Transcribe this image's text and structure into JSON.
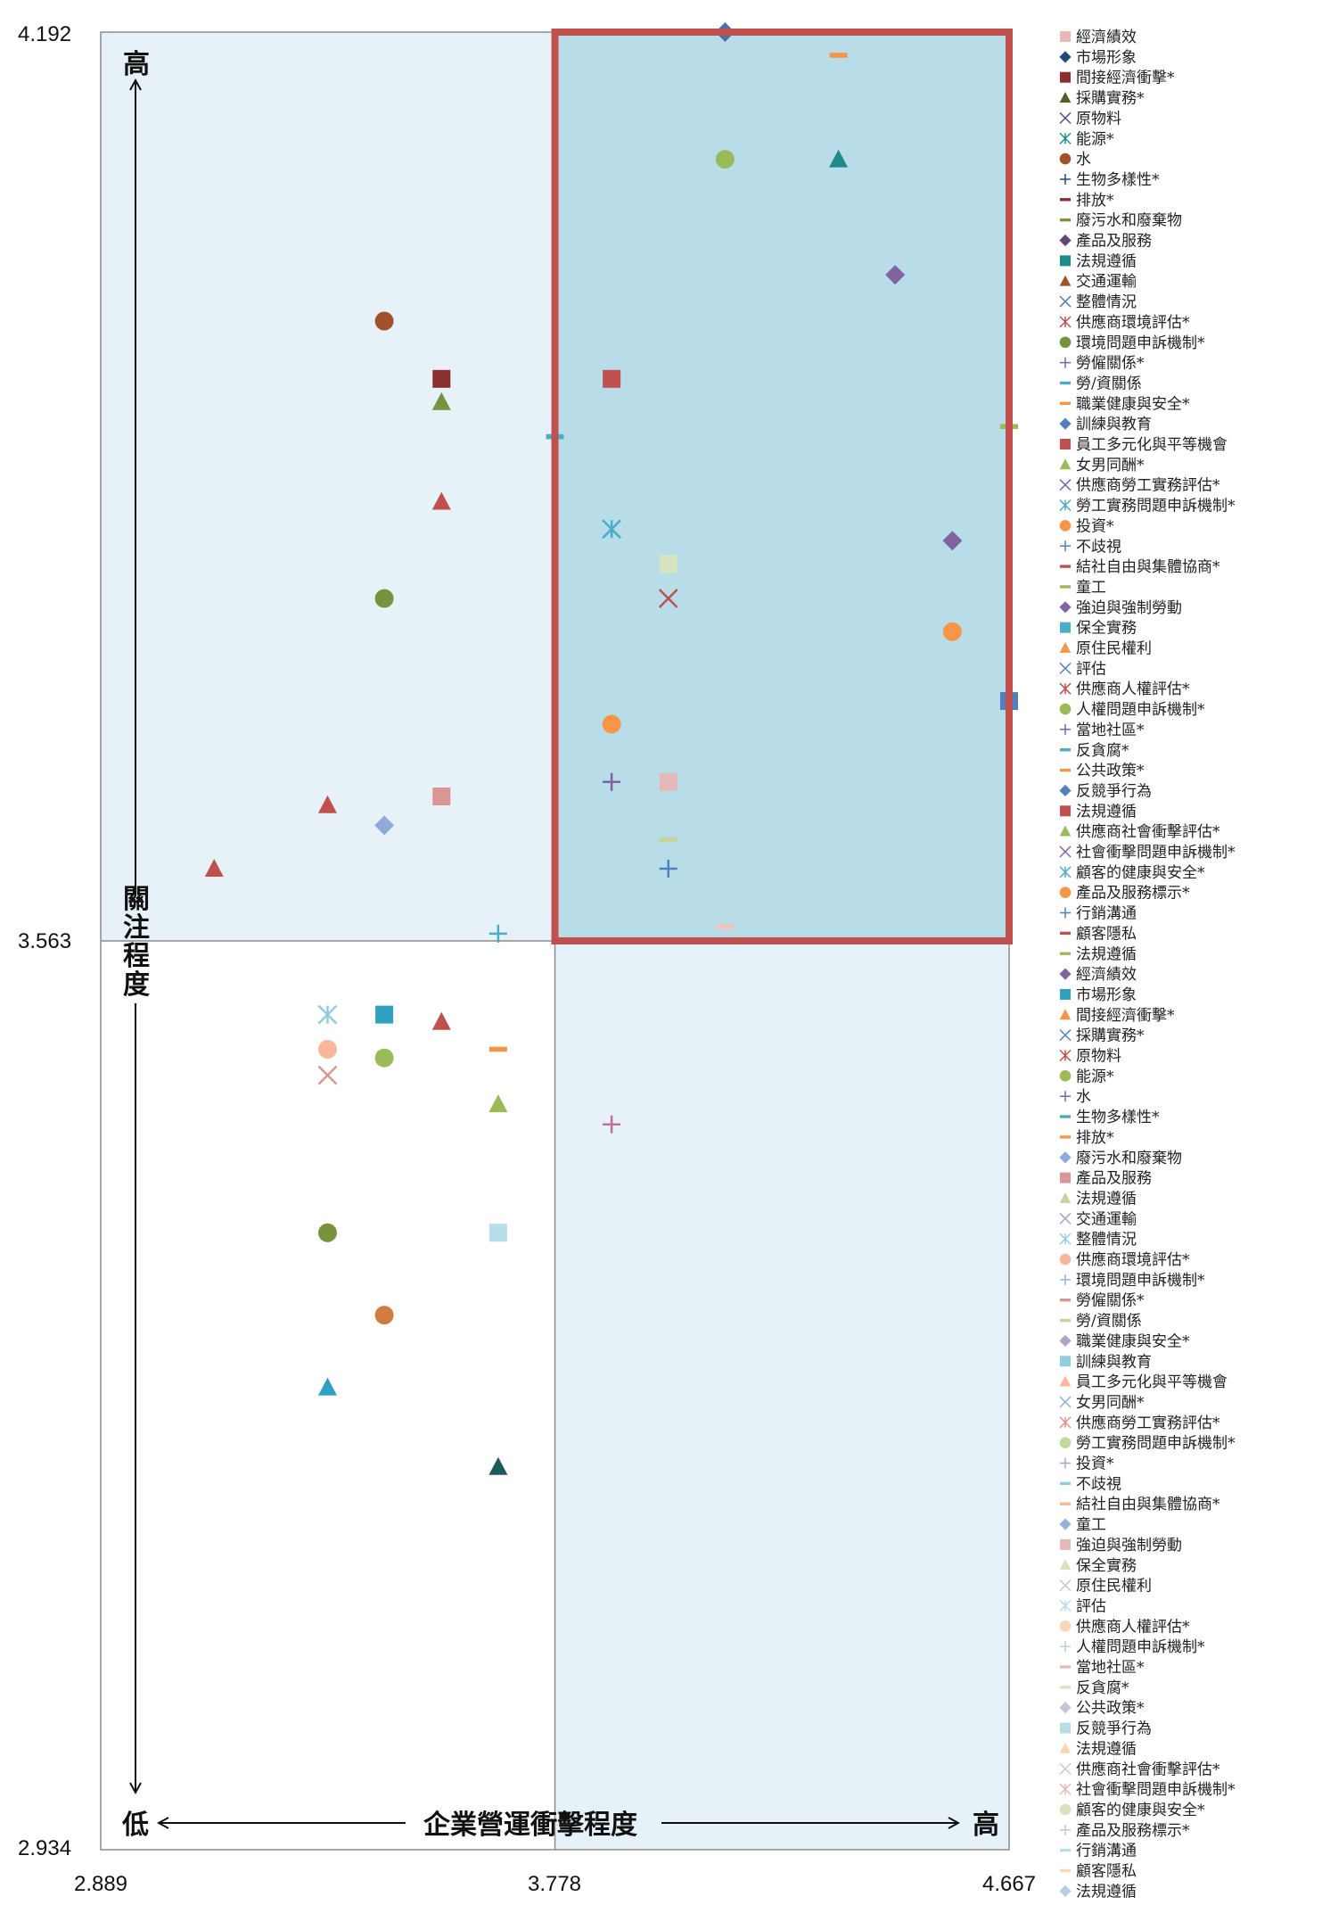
{
  "chart_data": {
    "type": "scatter",
    "title": "",
    "xlabel": "企業營運衝擊程度",
    "ylabel": "關注程度",
    "x_low_label": "低",
    "x_high_label": "高",
    "y_high_label": "高",
    "xlim": [
      2.889,
      4.667
    ],
    "ylim": [
      2.934,
      4.192
    ],
    "x_tick_labels": [
      "2.889",
      "3.778",
      "4.667"
    ],
    "y_tick_labels": [
      "2.934",
      "3.563",
      "4.192"
    ],
    "x_divider": 3.778,
    "y_divider": 3.563,
    "highlight_region": {
      "x": [
        3.778,
        4.667
      ],
      "y": [
        3.563,
        4.192
      ],
      "color": "#c0504d"
    },
    "colors": {
      "quadrant_shade": "#e7f2f8",
      "highlight_fill": "#b8dde9",
      "plot_border": "#8c8c8c"
    },
    "points": [
      {
        "x": 4.111,
        "y": 4.192,
        "marker": "diamond",
        "color": "#4f6fa8"
      },
      {
        "x": 4.333,
        "y": 4.176,
        "marker": "dash",
        "color": "#f79646"
      },
      {
        "x": 4.333,
        "y": 4.104,
        "marker": "triangle",
        "color": "#1f8a8a"
      },
      {
        "x": 4.111,
        "y": 4.104,
        "marker": "circle",
        "color": "#9bbb59"
      },
      {
        "x": 4.444,
        "y": 4.024,
        "marker": "diamond",
        "color": "#8064a2"
      },
      {
        "x": 3.444,
        "y": 3.992,
        "marker": "circle",
        "color": "#a0522d"
      },
      {
        "x": 3.556,
        "y": 3.952,
        "marker": "square",
        "color": "#8b2e2e"
      },
      {
        "x": 3.889,
        "y": 3.952,
        "marker": "square",
        "color": "#c0504d"
      },
      {
        "x": 3.556,
        "y": 3.936,
        "marker": "triangle",
        "color": "#77933c"
      },
      {
        "x": 4.667,
        "y": 3.919,
        "marker": "dash",
        "color": "#9bbb59"
      },
      {
        "x": 3.778,
        "y": 3.912,
        "marker": "dash",
        "color": "#4bacc6"
      },
      {
        "x": 3.556,
        "y": 3.867,
        "marker": "triangle",
        "color": "#c0504d"
      },
      {
        "x": 3.889,
        "y": 3.848,
        "marker": "star",
        "color": "#4bacc6"
      },
      {
        "x": 4.556,
        "y": 3.84,
        "marker": "diamond",
        "color": "#8064a2"
      },
      {
        "x": 4.0,
        "y": 3.824,
        "marker": "square",
        "color": "#d7e4bd"
      },
      {
        "x": 3.444,
        "y": 3.8,
        "marker": "circle",
        "color": "#77933c"
      },
      {
        "x": 4.0,
        "y": 3.8,
        "marker": "x",
        "color": "#c0504d"
      },
      {
        "x": 4.556,
        "y": 3.777,
        "marker": "circle",
        "color": "#f79646"
      },
      {
        "x": 4.667,
        "y": 3.729,
        "marker": "square",
        "color": "#4f81bd"
      },
      {
        "x": 3.889,
        "y": 3.713,
        "marker": "circle",
        "color": "#f79646"
      },
      {
        "x": 3.889,
        "y": 3.673,
        "marker": "plus",
        "color": "#8064a2"
      },
      {
        "x": 4.0,
        "y": 3.673,
        "marker": "square",
        "color": "#e6b9b8"
      },
      {
        "x": 3.556,
        "y": 3.663,
        "marker": "square",
        "color": "#d99694"
      },
      {
        "x": 3.333,
        "y": 3.657,
        "marker": "triangle",
        "color": "#c0504d"
      },
      {
        "x": 3.444,
        "y": 3.643,
        "marker": "diamond",
        "color": "#8eaadb"
      },
      {
        "x": 4.0,
        "y": 3.633,
        "marker": "dash",
        "color": "#c3d69b"
      },
      {
        "x": 3.111,
        "y": 3.613,
        "marker": "triangle",
        "color": "#c0504d"
      },
      {
        "x": 4.0,
        "y": 3.613,
        "marker": "plus",
        "color": "#4f81bd"
      },
      {
        "x": 3.667,
        "y": 3.568,
        "marker": "plus",
        "color": "#4bacc6"
      },
      {
        "x": 4.111,
        "y": 3.573,
        "marker": "dash",
        "color": "#f2c4b9"
      },
      {
        "x": 3.333,
        "y": 3.512,
        "marker": "star",
        "color": "#93cddd"
      },
      {
        "x": 3.444,
        "y": 3.512,
        "marker": "square",
        "color": "#31a0c0"
      },
      {
        "x": 3.556,
        "y": 3.507,
        "marker": "triangle",
        "color": "#c0504d"
      },
      {
        "x": 3.333,
        "y": 3.488,
        "marker": "circle",
        "color": "#fab69a"
      },
      {
        "x": 3.667,
        "y": 3.488,
        "marker": "dash",
        "color": "#f79646"
      },
      {
        "x": 3.444,
        "y": 3.482,
        "marker": "circle",
        "color": "#9bbb59"
      },
      {
        "x": 3.333,
        "y": 3.47,
        "marker": "x",
        "color": "#d99694"
      },
      {
        "x": 3.667,
        "y": 3.45,
        "marker": "triangle",
        "color": "#9bbb59"
      },
      {
        "x": 3.889,
        "y": 3.436,
        "marker": "plus",
        "color": "#c0709f"
      },
      {
        "x": 3.333,
        "y": 3.361,
        "marker": "circle",
        "color": "#77933c"
      },
      {
        "x": 3.667,
        "y": 3.361,
        "marker": "square",
        "color": "#b7dde8"
      },
      {
        "x": 3.444,
        "y": 3.304,
        "marker": "circle",
        "color": "#d07c41"
      },
      {
        "x": 3.333,
        "y": 3.254,
        "marker": "triangle",
        "color": "#31a0c0"
      },
      {
        "x": 3.667,
        "y": 3.199,
        "marker": "triangle",
        "color": "#1f5a5a"
      }
    ],
    "legend": [
      {
        "label": "經濟績效",
        "marker": "square",
        "color": "#e6b9b8"
      },
      {
        "label": "市場形象",
        "marker": "diamond",
        "color": "#1f497d"
      },
      {
        "label": "間接經濟衝擊*",
        "marker": "square",
        "color": "#8b2e2e"
      },
      {
        "label": "採購實務*",
        "marker": "triangle",
        "color": "#4f6228"
      },
      {
        "label": "原物料",
        "marker": "x",
        "color": "#60497a"
      },
      {
        "label": "能源*",
        "marker": "star",
        "color": "#1f8a8a"
      },
      {
        "label": "水",
        "marker": "circle",
        "color": "#a0522d"
      },
      {
        "label": "生物多樣性*",
        "marker": "plus",
        "color": "#1f497d"
      },
      {
        "label": "排放*",
        "marker": "dash",
        "color": "#8b2e2e"
      },
      {
        "label": "廢污水和廢棄物",
        "marker": "dash",
        "color": "#77933c"
      },
      {
        "label": "產品及服務",
        "marker": "diamond",
        "color": "#60497a"
      },
      {
        "label": "法規遵循",
        "marker": "square",
        "color": "#1f8a8a"
      },
      {
        "label": "交通運輸",
        "marker": "triangle",
        "color": "#a0522d"
      },
      {
        "label": "整體情況",
        "marker": "x",
        "color": "#4f81bd"
      },
      {
        "label": "供應商環境評估*",
        "marker": "star",
        "color": "#c0504d"
      },
      {
        "label": "環境問題申訴機制*",
        "marker": "circle",
        "color": "#77933c"
      },
      {
        "label": "勞僱關係*",
        "marker": "plus",
        "color": "#8064a2"
      },
      {
        "label": "勞/資關係",
        "marker": "dash",
        "color": "#4bacc6"
      },
      {
        "label": "職業健康與安全*",
        "marker": "dash",
        "color": "#f79646"
      },
      {
        "label": "訓練與教育",
        "marker": "diamond",
        "color": "#4f81bd"
      },
      {
        "label": "員工多元化與平等機會",
        "marker": "square",
        "color": "#c0504d"
      },
      {
        "label": "女男同酬*",
        "marker": "triangle",
        "color": "#9bbb59"
      },
      {
        "label": "供應商勞工實務評估*",
        "marker": "x",
        "color": "#8064a2"
      },
      {
        "label": "勞工實務問題申訴機制*",
        "marker": "star",
        "color": "#4bacc6"
      },
      {
        "label": "投資*",
        "marker": "circle",
        "color": "#f79646"
      },
      {
        "label": "不歧視",
        "marker": "plus",
        "color": "#4f81bd"
      },
      {
        "label": "結社自由與集體協商*",
        "marker": "dash",
        "color": "#c0504d"
      },
      {
        "label": "童工",
        "marker": "dash",
        "color": "#9bbb59"
      },
      {
        "label": "強迫與強制勞動",
        "marker": "diamond",
        "color": "#8064a2"
      },
      {
        "label": "保全實務",
        "marker": "square",
        "color": "#4bacc6"
      },
      {
        "label": "原住民權利",
        "marker": "triangle",
        "color": "#f79646"
      },
      {
        "label": "評估",
        "marker": "x",
        "color": "#4f81bd"
      },
      {
        "label": "供應商人權評估*",
        "marker": "star",
        "color": "#c0504d"
      },
      {
        "label": "人權問題申訴機制*",
        "marker": "circle",
        "color": "#9bbb59"
      },
      {
        "label": "當地社區*",
        "marker": "plus",
        "color": "#8064a2"
      },
      {
        "label": "反貪腐*",
        "marker": "dash",
        "color": "#4bacc6"
      },
      {
        "label": "公共政策*",
        "marker": "dash",
        "color": "#f79646"
      },
      {
        "label": "反競爭行為",
        "marker": "diamond",
        "color": "#4f81bd"
      },
      {
        "label": "法規遵循",
        "marker": "square",
        "color": "#c0504d"
      },
      {
        "label": "供應商社會衝擊評估*",
        "marker": "triangle",
        "color": "#9bbb59"
      },
      {
        "label": "社會衝擊問題申訴機制*",
        "marker": "x",
        "color": "#8064a2"
      },
      {
        "label": "顧客的健康與安全*",
        "marker": "star",
        "color": "#4bacc6"
      },
      {
        "label": "產品及服務標示*",
        "marker": "circle",
        "color": "#f79646"
      },
      {
        "label": "行銷溝通",
        "marker": "plus",
        "color": "#4f81bd"
      },
      {
        "label": "顧客隱私",
        "marker": "dash",
        "color": "#c0504d"
      },
      {
        "label": "法規遵循",
        "marker": "dash",
        "color": "#9bbb59"
      },
      {
        "label": "經濟績效",
        "marker": "diamond",
        "color": "#8064a2"
      },
      {
        "label": "市場形象",
        "marker": "square",
        "color": "#31a0c0"
      },
      {
        "label": "間接經濟衝擊*",
        "marker": "triangle",
        "color": "#f79646"
      },
      {
        "label": "採購實務*",
        "marker": "x",
        "color": "#4f81bd"
      },
      {
        "label": "原物料",
        "marker": "star",
        "color": "#c0504d"
      },
      {
        "label": "能源*",
        "marker": "circle",
        "color": "#9bbb59"
      },
      {
        "label": "水",
        "marker": "plus",
        "color": "#8064a2"
      },
      {
        "label": "生物多樣性*",
        "marker": "dash",
        "color": "#4bacc6"
      },
      {
        "label": "排放*",
        "marker": "dash",
        "color": "#f79646"
      },
      {
        "label": "廢污水和廢棄物",
        "marker": "diamond",
        "color": "#8eaadb"
      },
      {
        "label": "產品及服務",
        "marker": "square",
        "color": "#d99694"
      },
      {
        "label": "法規遵循",
        "marker": "triangle",
        "color": "#c3d69b"
      },
      {
        "label": "交通運輸",
        "marker": "x",
        "color": "#b2a2c7"
      },
      {
        "label": "整體情況",
        "marker": "star",
        "color": "#93cddd"
      },
      {
        "label": "供應商環境評估*",
        "marker": "circle",
        "color": "#fab69a"
      },
      {
        "label": "環境問題申訴機制*",
        "marker": "plus",
        "color": "#95b3d7"
      },
      {
        "label": "勞僱關係*",
        "marker": "dash",
        "color": "#d99694"
      },
      {
        "label": "勞/資關係",
        "marker": "dash",
        "color": "#c3d69b"
      },
      {
        "label": "職業健康與安全*",
        "marker": "diamond",
        "color": "#b2a2c7"
      },
      {
        "label": "訓練與教育",
        "marker": "square",
        "color": "#93cddd"
      },
      {
        "label": "員工多元化與平等機會",
        "marker": "triangle",
        "color": "#fab69a"
      },
      {
        "label": "女男同酬*",
        "marker": "x",
        "color": "#95b3d7"
      },
      {
        "label": "供應商勞工實務評估*",
        "marker": "star",
        "color": "#d99694"
      },
      {
        "label": "勞工實務問題申訴機制*",
        "marker": "circle",
        "color": "#c3d69b"
      },
      {
        "label": "投資*",
        "marker": "plus",
        "color": "#b2a2c7"
      },
      {
        "label": "不歧視",
        "marker": "dash",
        "color": "#93cddd"
      },
      {
        "label": "結社自由與集體協商*",
        "marker": "dash",
        "color": "#fab69a"
      },
      {
        "label": "童工",
        "marker": "diamond",
        "color": "#95b3d7"
      },
      {
        "label": "強迫與強制勞動",
        "marker": "square",
        "color": "#e6b9b8"
      },
      {
        "label": "保全實務",
        "marker": "triangle",
        "color": "#d7e4bd"
      },
      {
        "label": "原住民權利",
        "marker": "x",
        "color": "#ccc1da"
      },
      {
        "label": "評估",
        "marker": "star",
        "color": "#b7dde8"
      },
      {
        "label": "供應商人權評估*",
        "marker": "circle",
        "color": "#fcd5b4"
      },
      {
        "label": "人權問題申訴機制*",
        "marker": "plus",
        "color": "#b8cce4"
      },
      {
        "label": "當地社區*",
        "marker": "dash",
        "color": "#e6b9b8"
      },
      {
        "label": "反貪腐*",
        "marker": "dash",
        "color": "#d7e4bd"
      },
      {
        "label": "公共政策*",
        "marker": "diamond",
        "color": "#ccc1da"
      },
      {
        "label": "反競爭行為",
        "marker": "square",
        "color": "#b7dde8"
      },
      {
        "label": "法規遵循",
        "marker": "triangle",
        "color": "#fcd5b4"
      },
      {
        "label": "供應商社會衝擊評估*",
        "marker": "x",
        "color": "#b8cce4"
      },
      {
        "label": "社會衝擊問題申訴機制*",
        "marker": "star",
        "color": "#e6b9b8"
      },
      {
        "label": "顧客的健康與安全*",
        "marker": "circle",
        "color": "#d7e4bd"
      },
      {
        "label": "產品及服務標示*",
        "marker": "plus",
        "color": "#ccc1da"
      },
      {
        "label": "行銷溝通",
        "marker": "dash",
        "color": "#b7dde8"
      },
      {
        "label": "顧客隱私",
        "marker": "dash",
        "color": "#fcd5b4"
      },
      {
        "label": "法規遵循",
        "marker": "diamond",
        "color": "#b8cce4"
      }
    ]
  }
}
